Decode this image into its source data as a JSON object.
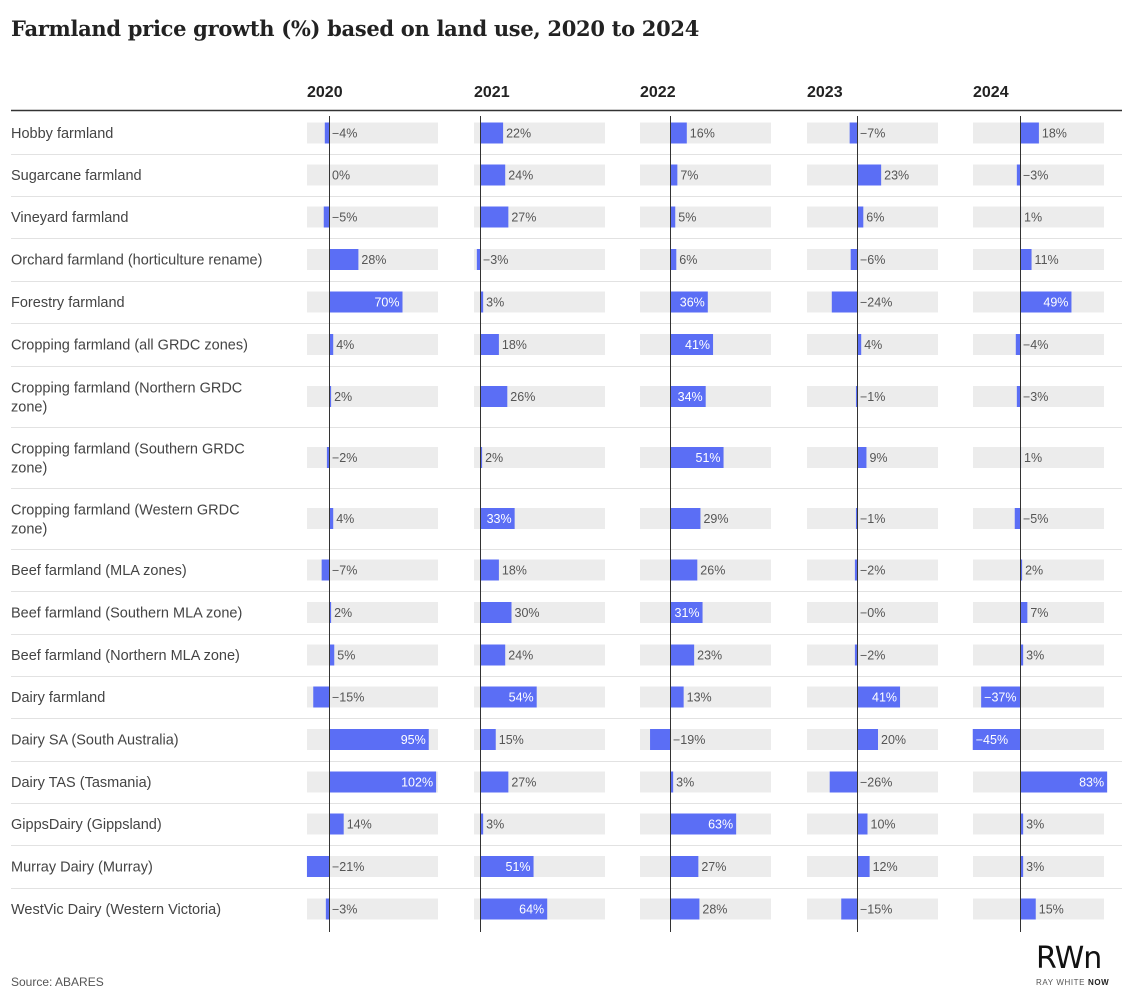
{
  "title": "Farmland price growth (%) based on land use, 2020 to 2024",
  "source": "Source: ABARES",
  "logo": {
    "mark": "RW",
    "mark_suffix": "n",
    "text": "RAY WHITE",
    "text_bold": "NOW"
  },
  "colors": {
    "bar": "#5b6ef5",
    "track": "#ececec",
    "axis": "#333333",
    "separator": "#e2e2e2"
  },
  "chart_data": {
    "type": "bar",
    "title": "Farmland price growth (%) based on land use, 2020 to 2024",
    "value_format": "percent",
    "categories": [
      "Hobby farmland",
      "Sugarcane farmland",
      "Vineyard farmland",
      "Orchard farmland (horticulture rename)",
      "Forestry farmland",
      "Cropping farmland (all GRDC zones)",
      "Cropping farmland (Northern GRDC zone)",
      "Cropping farmland (Southern GRDC zone)",
      "Cropping farmland (Western GRDC zone)",
      "Beef farmland (MLA zones)",
      "Beef farmland (Southern MLA zone)",
      "Beef farmland (Northern MLA zone)",
      "Dairy farmland",
      "Dairy SA (South Australia)",
      "Dairy TAS (Tasmania)",
      "GippsDairy (Gippsland)",
      "Murray Dairy (Murray)",
      "WestVic Dairy (Western Victoria)"
    ],
    "series": [
      {
        "name": "2020",
        "values": [
          -4,
          0,
          -5,
          28,
          70,
          4,
          2,
          -2,
          4,
          -7,
          2,
          5,
          -15,
          95,
          102,
          14,
          -21,
          -3
        ]
      },
      {
        "name": "2021",
        "values": [
          22,
          24,
          27,
          -3,
          3,
          18,
          26,
          2,
          33,
          18,
          30,
          24,
          54,
          15,
          27,
          3,
          51,
          64
        ]
      },
      {
        "name": "2022",
        "values": [
          16,
          7,
          5,
          6,
          36,
          41,
          34,
          51,
          29,
          26,
          31,
          23,
          13,
          -19,
          3,
          63,
          27,
          28
        ]
      },
      {
        "name": "2023",
        "values": [
          -7,
          23,
          6,
          -6,
          -24,
          4,
          -1,
          9,
          -1,
          -2,
          "-0",
          -2,
          41,
          20,
          -26,
          10,
          12,
          -15
        ]
      },
      {
        "name": "2024",
        "values": [
          18,
          -3,
          1,
          11,
          49,
          -4,
          -3,
          1,
          -5,
          2,
          7,
          3,
          -37,
          -45,
          83,
          3,
          3,
          15
        ]
      }
    ]
  }
}
